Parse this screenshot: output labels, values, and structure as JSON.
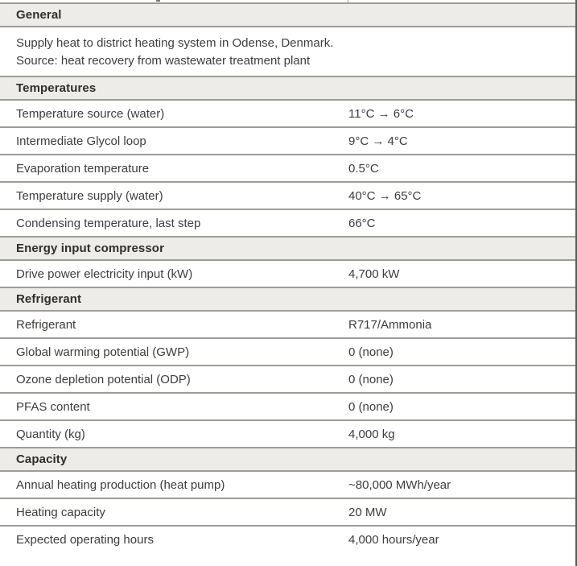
{
  "colors": {
    "header_bg": "#edece9",
    "border": "#9d9c98",
    "right_edge": "#5a5a58",
    "text": "#3e3d3c",
    "heading_text": "#2f2e2d"
  },
  "table": {
    "sections": [
      {
        "title": "General",
        "description": [
          "Supply heat to district heating system in Odense, Denmark.",
          "Source: heat recovery from wastewater treatment plant"
        ],
        "rows": []
      },
      {
        "title": "Temperatures",
        "rows": [
          {
            "label": "Temperature source (water)",
            "value": "11°C → 6°C"
          },
          {
            "label": "Intermediate Glycol loop",
            "value": "9°C → 4°C"
          },
          {
            "label": "Evaporation temperature",
            "value": "0.5°C"
          },
          {
            "label": "Temperature supply (water)",
            "value": "40°C → 65°C"
          },
          {
            "label": "Condensing temperature, last step",
            "value": "66°C"
          }
        ]
      },
      {
        "title": "Energy input compressor",
        "rows": [
          {
            "label": "Drive power electricity input (kW)",
            "value": "4,700 kW"
          }
        ]
      },
      {
        "title": "Refrigerant",
        "rows": [
          {
            "label": "Refrigerant",
            "value": "R717/Ammonia"
          },
          {
            "label": "Global warming potential (GWP)",
            "value": "0 (none)"
          },
          {
            "label": "Ozone depletion potential (ODP)",
            "value": "0 (none)"
          },
          {
            "label": "PFAS content",
            "value": "0 (none)"
          },
          {
            "label": "Quantity (kg)",
            "value": "4,000 kg"
          }
        ]
      },
      {
        "title": "Capacity",
        "rows": [
          {
            "label": "Annual heating production (heat pump)",
            "value": "~80,000 MWh/year"
          },
          {
            "label": "Heating capacity",
            "value": "20 MW"
          },
          {
            "label": "Expected operating hours",
            "value": "4,000 hours/year"
          }
        ]
      }
    ]
  }
}
